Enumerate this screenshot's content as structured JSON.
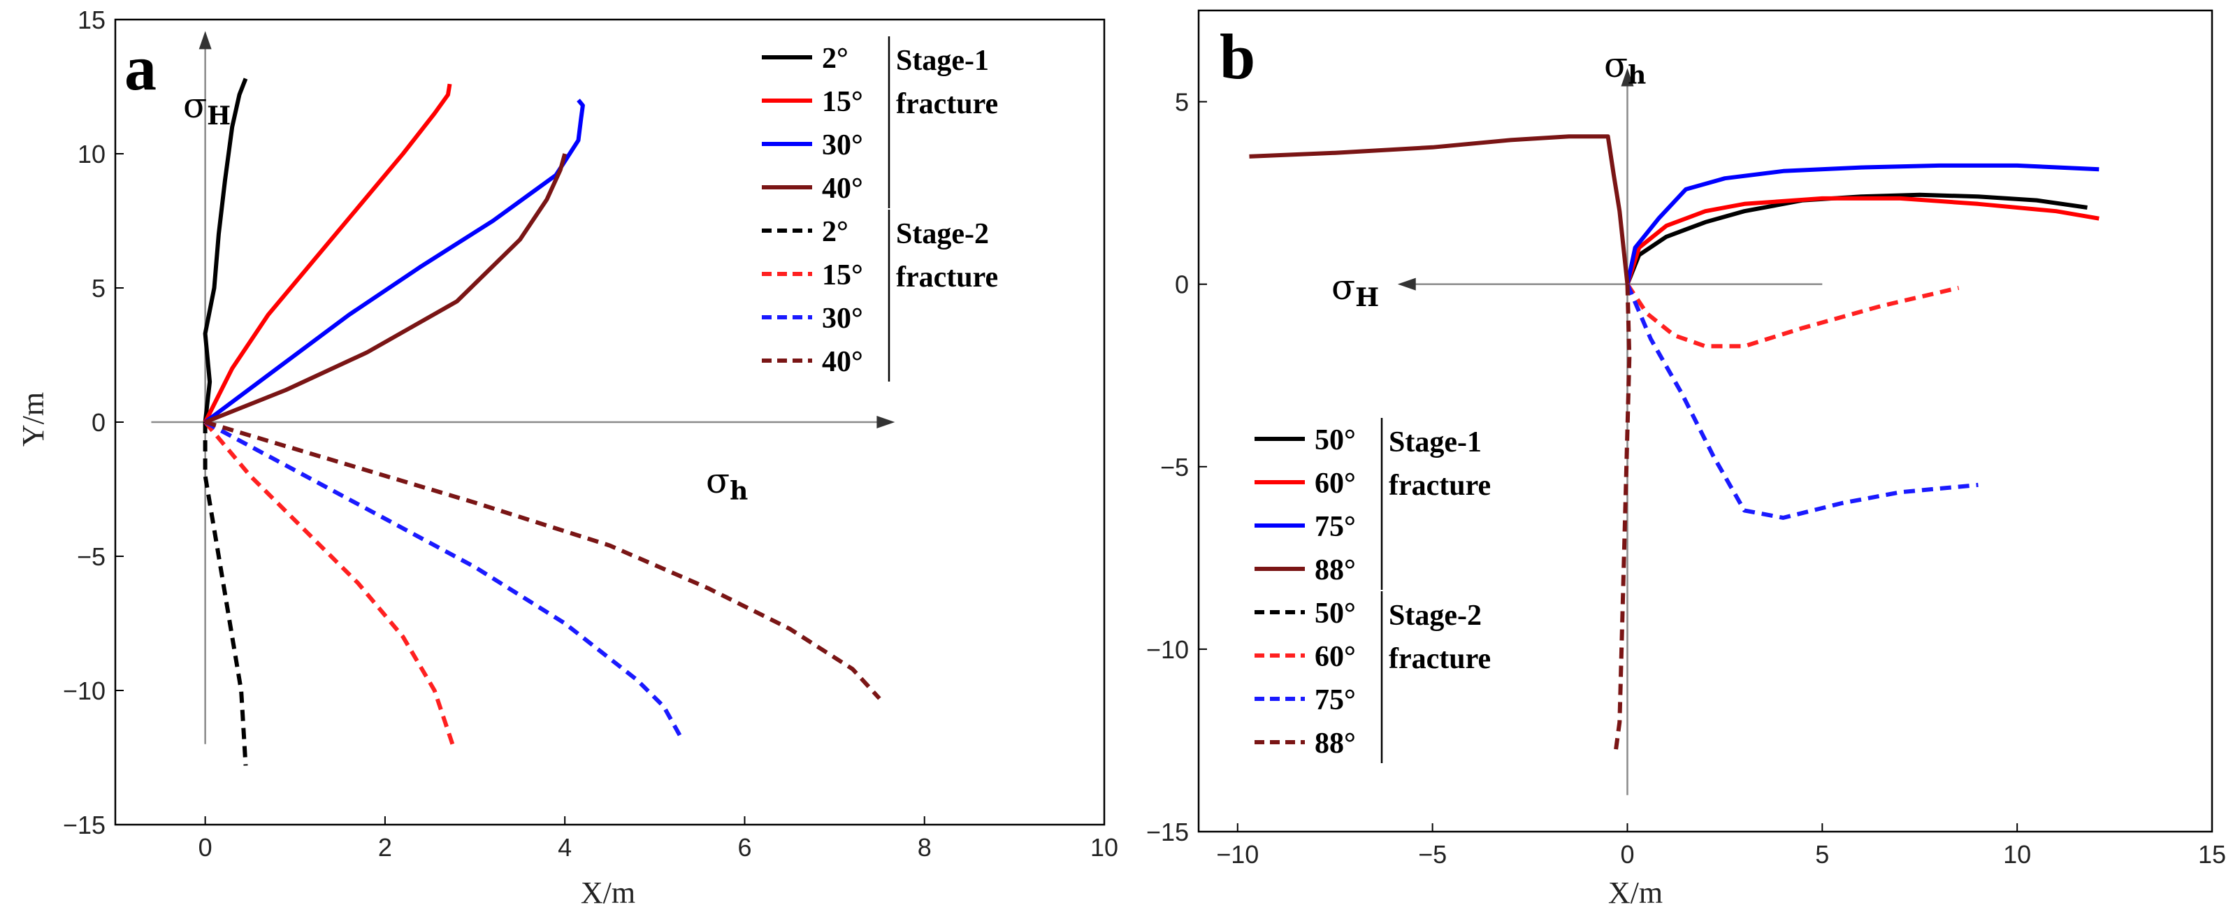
{
  "chart_data": [
    {
      "type": "line",
      "panel_label": "a",
      "xlabel": "X/m",
      "ylabel": "Y/m",
      "xlim": [
        -1,
        10
      ],
      "ylim": [
        -15,
        15
      ],
      "xticks": [
        0,
        2,
        4,
        6,
        8,
        10
      ],
      "yticks": [
        -15,
        -10,
        -5,
        0,
        5,
        10,
        15
      ],
      "xtick_labels": [
        "0",
        "2",
        "4",
        "6",
        "8",
        "10"
      ],
      "ytick_labels": [
        "−15",
        "−10",
        "−5",
        "0",
        "5",
        "10",
        "15"
      ],
      "stress_axes": {
        "vertical": {
          "symbol": "σ",
          "sub": "H"
        },
        "horizontal": {
          "symbol": "σ",
          "sub": "h"
        }
      },
      "legend": {
        "position": "top-right",
        "groups": [
          {
            "line1": "Stage-1",
            "line2": "fracture",
            "entries": [
              "2°",
              "15°",
              "30°",
              "40°"
            ]
          },
          {
            "line1": "Stage-2",
            "line2": "fracture",
            "entries": [
              "2°",
              "15°",
              "30°",
              "40°"
            ]
          }
        ]
      },
      "series": [
        {
          "name": "2°",
          "stage": 1,
          "color": "#000000",
          "style": "solid",
          "x": [
            0,
            0.05,
            0.0,
            0.1,
            0.15,
            0.22,
            0.3,
            0.38,
            0.45
          ],
          "y": [
            0,
            1.5,
            3.3,
            5,
            7,
            9,
            11,
            12.2,
            12.8
          ]
        },
        {
          "name": "15°",
          "stage": 1,
          "color": "#ff0000",
          "style": "solid",
          "x": [
            0,
            0.3,
            0.7,
            1.2,
            1.7,
            2.2,
            2.55,
            2.7,
            2.72
          ],
          "y": [
            0,
            2,
            4,
            6,
            8,
            10,
            11.5,
            12.2,
            12.6
          ]
        },
        {
          "name": "30°",
          "stage": 1,
          "color": "#0000ff",
          "style": "solid",
          "x": [
            0,
            0.8,
            1.6,
            2.4,
            3.2,
            3.9,
            4.15,
            4.18,
            4.2,
            4.15
          ],
          "y": [
            0,
            2,
            4,
            5.8,
            7.5,
            9.2,
            10.5,
            11.3,
            11.8,
            12.0
          ]
        },
        {
          "name": "40°",
          "stage": 1,
          "color": "#7a1515",
          "style": "solid",
          "x": [
            0,
            0.9,
            1.8,
            2.8,
            3.5,
            3.8,
            3.95,
            4.0
          ],
          "y": [
            0,
            1.2,
            2.6,
            4.5,
            6.8,
            8.3,
            9.4,
            10.0
          ]
        },
        {
          "name": "2°",
          "stage": 2,
          "color": "#000000",
          "style": "dashed",
          "x": [
            0,
            0.0,
            0.1,
            0.2,
            0.3,
            0.4,
            0.45
          ],
          "y": [
            0,
            -2,
            -4,
            -6,
            -8,
            -10,
            -12.8
          ]
        },
        {
          "name": "15°",
          "stage": 2,
          "color": "#ff2020",
          "style": "dashed",
          "x": [
            0,
            0.5,
            1.1,
            1.7,
            2.2,
            2.55,
            2.75
          ],
          "y": [
            0,
            -2,
            -4,
            -6,
            -8,
            -10,
            -12
          ]
        },
        {
          "name": "30°",
          "stage": 2,
          "color": "#1a1aff",
          "style": "dashed",
          "x": [
            0,
            1.0,
            2.0,
            3.0,
            4.0,
            4.8,
            5.1,
            5.3
          ],
          "y": [
            0,
            -1.8,
            -3.6,
            -5.4,
            -7.5,
            -9.6,
            -10.6,
            -11.8
          ]
        },
        {
          "name": "40°",
          "stage": 2,
          "color": "#7a1515",
          "style": "dashed",
          "x": [
            0,
            1.5,
            3.0,
            4.5,
            5.6,
            6.5,
            7.2,
            7.5
          ],
          "y": [
            0,
            -1.5,
            -3,
            -4.6,
            -6.2,
            -7.7,
            -9.2,
            -10.3
          ]
        }
      ]
    },
    {
      "type": "line",
      "panel_label": "b",
      "xlabel": "X/m",
      "ylabel": "",
      "xlim": [
        -11,
        15
      ],
      "ylim": [
        -15,
        7.5
      ],
      "xticks": [
        -10,
        -5,
        0,
        5,
        10,
        15
      ],
      "yticks": [
        -15,
        -10,
        -5,
        0,
        5
      ],
      "xtick_labels": [
        "−10",
        "−5",
        "0",
        "5",
        "10",
        "15"
      ],
      "ytick_labels": [
        "−15",
        "−10",
        "−5",
        "0",
        "5"
      ],
      "stress_axes": {
        "vertical": {
          "symbol": "σ",
          "sub": "h"
        },
        "horizontal": {
          "symbol": "σ",
          "sub": "H"
        }
      },
      "legend": {
        "position": "bottom-left",
        "groups": [
          {
            "line1": "Stage-1",
            "line2": "fracture",
            "entries": [
              "50°",
              "60°",
              "75°",
              "88°"
            ]
          },
          {
            "line1": "Stage-2",
            "line2": "fracture",
            "entries": [
              "50°",
              "60°",
              "75°",
              "88°"
            ]
          }
        ]
      },
      "series": [
        {
          "name": "50°",
          "stage": 1,
          "color": "#000000",
          "style": "solid",
          "x": [
            0,
            0.3,
            1,
            2,
            3,
            4.5,
            6,
            7.5,
            9,
            10.5,
            11.8
          ],
          "y": [
            0,
            0.8,
            1.3,
            1.7,
            2.0,
            2.3,
            2.4,
            2.45,
            2.4,
            2.3,
            2.1
          ]
        },
        {
          "name": "60°",
          "stage": 1,
          "color": "#ff0000",
          "style": "solid",
          "x": [
            0,
            0.3,
            1,
            2,
            3,
            5,
            7,
            9,
            11,
            12.1
          ],
          "y": [
            0,
            1.0,
            1.6,
            2.0,
            2.2,
            2.35,
            2.35,
            2.2,
            2.0,
            1.8
          ]
        },
        {
          "name": "75°",
          "stage": 1,
          "color": "#0000ff",
          "style": "solid",
          "x": [
            0,
            0.2,
            0.8,
            1.5,
            2.5,
            4,
            6,
            8,
            10,
            12.1
          ],
          "y": [
            0,
            1.0,
            1.8,
            2.6,
            2.9,
            3.1,
            3.2,
            3.25,
            3.25,
            3.15
          ]
        },
        {
          "name": "88°",
          "stage": 1,
          "color": "#7a1515",
          "style": "solid",
          "x": [
            0,
            -0.1,
            -0.2,
            -0.35,
            -0.5,
            -1.5,
            -3,
            -5,
            -7.5,
            -9.7
          ],
          "y": [
            0,
            1,
            2,
            3,
            4.05,
            4.05,
            3.95,
            3.75,
            3.6,
            3.5
          ]
        },
        {
          "name": "50°",
          "stage": 2,
          "color": "#000000",
          "style": "dashed",
          "x": [
            0,
            0.1
          ],
          "y": [
            0,
            -0.3
          ]
        },
        {
          "name": "60°",
          "stage": 2,
          "color": "#ff2020",
          "style": "dashed",
          "x": [
            0,
            0.5,
            1.2,
            2.0,
            3.0,
            4.5,
            6.5,
            8.5
          ],
          "y": [
            0,
            -0.8,
            -1.4,
            -1.7,
            -1.7,
            -1.2,
            -0.6,
            -0.1
          ]
        },
        {
          "name": "75°",
          "stage": 2,
          "color": "#1a1aff",
          "style": "dashed",
          "x": [
            0,
            0.6,
            1.4,
            2.2,
            3.0,
            4.0,
            5.5,
            7.0,
            9.0
          ],
          "y": [
            0,
            -1.5,
            -3.0,
            -4.7,
            -6.2,
            -6.4,
            -6.0,
            -5.7,
            -5.5
          ]
        },
        {
          "name": "88°",
          "stage": 2,
          "color": "#7a1515",
          "style": "dashed",
          "x": [
            0,
            0.05,
            0.0,
            -0.05,
            -0.1,
            -0.15,
            -0.2,
            -0.3
          ],
          "y": [
            0,
            -2,
            -4,
            -6,
            -8,
            -10,
            -12,
            -12.8
          ]
        }
      ]
    }
  ]
}
